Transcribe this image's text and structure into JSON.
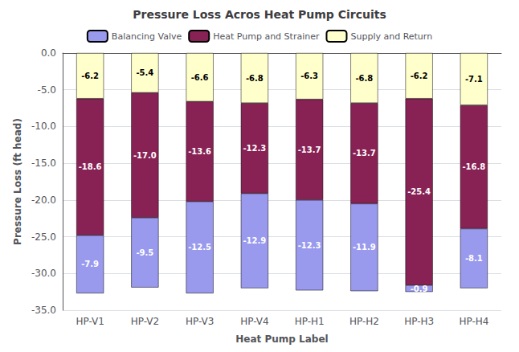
{
  "chart_data": {
    "type": "bar",
    "title": "Pressure Loss Acros Heat Pump Circuits",
    "x_label": "Heat Pump Label",
    "y_label": "Pressure Loss (ft head)",
    "categories": [
      "HP-V1",
      "HP-V2",
      "HP-V3",
      "HP-V4",
      "HP-H1",
      "HP-H2",
      "HP-H3",
      "HP-H4"
    ],
    "series": [
      {
        "name": "Supply and Return",
        "color": "#FFFFCC",
        "values": [
          -6.2,
          -5.4,
          -6.6,
          -6.8,
          -6.3,
          -6.8,
          -6.2,
          -7.1
        ],
        "value_labels": [
          "-6.2",
          "-5.4",
          "-6.6",
          "-6.8",
          "-6.3",
          "-6.8",
          "-6.2",
          "-7.1"
        ]
      },
      {
        "name": "Heat Pump and Strainer",
        "color": "#882255",
        "values": [
          -18.6,
          -17.0,
          -13.6,
          -12.3,
          -13.7,
          -13.7,
          -25.4,
          -16.8
        ],
        "value_labels": [
          "-18.6",
          "-17.0",
          "-13.6",
          "-12.3",
          "-13.7",
          "-13.7",
          "-25.4",
          "-16.8"
        ]
      },
      {
        "name": "Balancing Valve",
        "color": "#9999EE",
        "values": [
          -7.9,
          -9.5,
          -12.5,
          -12.9,
          -12.3,
          -11.9,
          -0.9,
          -8.1
        ],
        "value_labels": [
          "-7.9",
          "-9.5",
          "-12.5",
          "-12.9",
          "-12.3",
          "-11.9",
          "-0.9",
          "-8.1"
        ]
      }
    ],
    "ylim": [
      -35,
      0
    ],
    "yticks": [
      {
        "value": -35,
        "label": "-35.0"
      },
      {
        "value": -30,
        "label": "-30.0"
      },
      {
        "value": -25,
        "label": "-25.0"
      },
      {
        "value": -20,
        "label": "-20.0"
      },
      {
        "value": -15,
        "label": "-15.0"
      },
      {
        "value": -10,
        "label": "-10.0"
      },
      {
        "value": -5,
        "label": "-5.0"
      },
      {
        "value": 0,
        "label": "0.0"
      }
    ],
    "stacked": true,
    "data_labels": true,
    "grid": true,
    "legend": "top"
  }
}
